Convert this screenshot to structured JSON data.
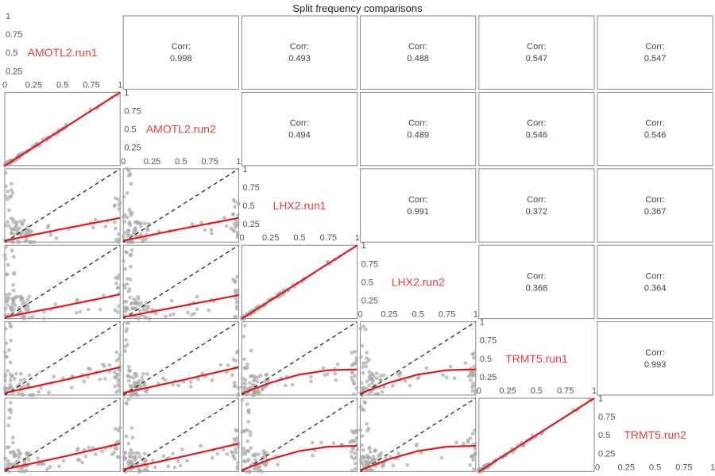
{
  "chart_data": {
    "type": "scatter",
    "title": "Split frequency comparisons",
    "variables": [
      "AMOTL2.run1",
      "AMOTL2.run2",
      "LHX2.run1",
      "LHX2.run2",
      "TRMT5.run1",
      "TRMT5.run2"
    ],
    "corr_label": "Corr:",
    "correlations": [
      {
        "row": 0,
        "col": 1,
        "value": "0.998"
      },
      {
        "row": 0,
        "col": 2,
        "value": "0.493"
      },
      {
        "row": 0,
        "col": 3,
        "value": "0.488"
      },
      {
        "row": 0,
        "col": 4,
        "value": "0.547"
      },
      {
        "row": 0,
        "col": 5,
        "value": "0.547"
      },
      {
        "row": 1,
        "col": 2,
        "value": "0.494"
      },
      {
        "row": 1,
        "col": 3,
        "value": "0.489"
      },
      {
        "row": 1,
        "col": 4,
        "value": "0.546"
      },
      {
        "row": 1,
        "col": 5,
        "value": "0.546"
      },
      {
        "row": 2,
        "col": 3,
        "value": "0.991"
      },
      {
        "row": 2,
        "col": 4,
        "value": "0.372"
      },
      {
        "row": 2,
        "col": 5,
        "value": "0.367"
      },
      {
        "row": 3,
        "col": 4,
        "value": "0.368"
      },
      {
        "row": 3,
        "col": 5,
        "value": "0.364"
      },
      {
        "row": 4,
        "col": 5,
        "value": "0.993"
      }
    ],
    "axis_ticks": [
      "0",
      "0.25",
      "0.5",
      "0.75",
      "1"
    ],
    "xlim": [
      0,
      1
    ],
    "ylim": [
      0,
      1
    ],
    "reference_line": "y = x (dashed)",
    "fit_line": "smoothed fit (red)",
    "fits": [
      {
        "row": 1,
        "col": 0,
        "points": [
          [
            0,
            0
          ],
          [
            0.5,
            0.5
          ],
          [
            1,
            1
          ]
        ]
      },
      {
        "row": 2,
        "col": 0,
        "points": [
          [
            0,
            0.02
          ],
          [
            0.5,
            0.18
          ],
          [
            1,
            0.33
          ]
        ]
      },
      {
        "row": 2,
        "col": 1,
        "points": [
          [
            0,
            0.02
          ],
          [
            0.5,
            0.18
          ],
          [
            1,
            0.33
          ]
        ]
      },
      {
        "row": 3,
        "col": 0,
        "points": [
          [
            0,
            0.02
          ],
          [
            0.5,
            0.17
          ],
          [
            1,
            0.33
          ]
        ]
      },
      {
        "row": 3,
        "col": 1,
        "points": [
          [
            0,
            0.02
          ],
          [
            0.5,
            0.17
          ],
          [
            1,
            0.32
          ]
        ]
      },
      {
        "row": 3,
        "col": 2,
        "points": [
          [
            0,
            0
          ],
          [
            0.5,
            0.5
          ],
          [
            1,
            1
          ]
        ]
      },
      {
        "row": 4,
        "col": 0,
        "points": [
          [
            0,
            0.03
          ],
          [
            0.5,
            0.2
          ],
          [
            1,
            0.38
          ]
        ]
      },
      {
        "row": 4,
        "col": 1,
        "points": [
          [
            0,
            0.03
          ],
          [
            0.5,
            0.2
          ],
          [
            1,
            0.38
          ]
        ]
      },
      {
        "row": 4,
        "col": 2,
        "points": [
          [
            0,
            0.02
          ],
          [
            0.25,
            0.17
          ],
          [
            0.5,
            0.28
          ],
          [
            0.75,
            0.34
          ],
          [
            1,
            0.35
          ]
        ]
      },
      {
        "row": 4,
        "col": 3,
        "points": [
          [
            0,
            0.02
          ],
          [
            0.25,
            0.17
          ],
          [
            0.5,
            0.28
          ],
          [
            0.75,
            0.34
          ],
          [
            1,
            0.35
          ]
        ]
      },
      {
        "row": 5,
        "col": 0,
        "points": [
          [
            0,
            0.03
          ],
          [
            0.5,
            0.2
          ],
          [
            1,
            0.38
          ]
        ]
      },
      {
        "row": 5,
        "col": 1,
        "points": [
          [
            0,
            0.03
          ],
          [
            0.5,
            0.2
          ],
          [
            1,
            0.38
          ]
        ]
      },
      {
        "row": 5,
        "col": 2,
        "points": [
          [
            0,
            0.02
          ],
          [
            0.25,
            0.17
          ],
          [
            0.5,
            0.28
          ],
          [
            0.75,
            0.34
          ],
          [
            1,
            0.35
          ]
        ]
      },
      {
        "row": 5,
        "col": 3,
        "points": [
          [
            0,
            0.02
          ],
          [
            0.25,
            0.17
          ],
          [
            0.5,
            0.28
          ],
          [
            0.75,
            0.34
          ],
          [
            1,
            0.35
          ]
        ]
      },
      {
        "row": 5,
        "col": 4,
        "points": [
          [
            0,
            0
          ],
          [
            0.5,
            0.5
          ],
          [
            1,
            1
          ]
        ]
      }
    ],
    "grid": false,
    "legend": "none",
    "colors": {
      "points": "#a9a9a9",
      "fit": "#e31a1c",
      "reference": "#222222",
      "variable_label": "#ee3b3b",
      "frame": "#8a8a8a"
    }
  }
}
